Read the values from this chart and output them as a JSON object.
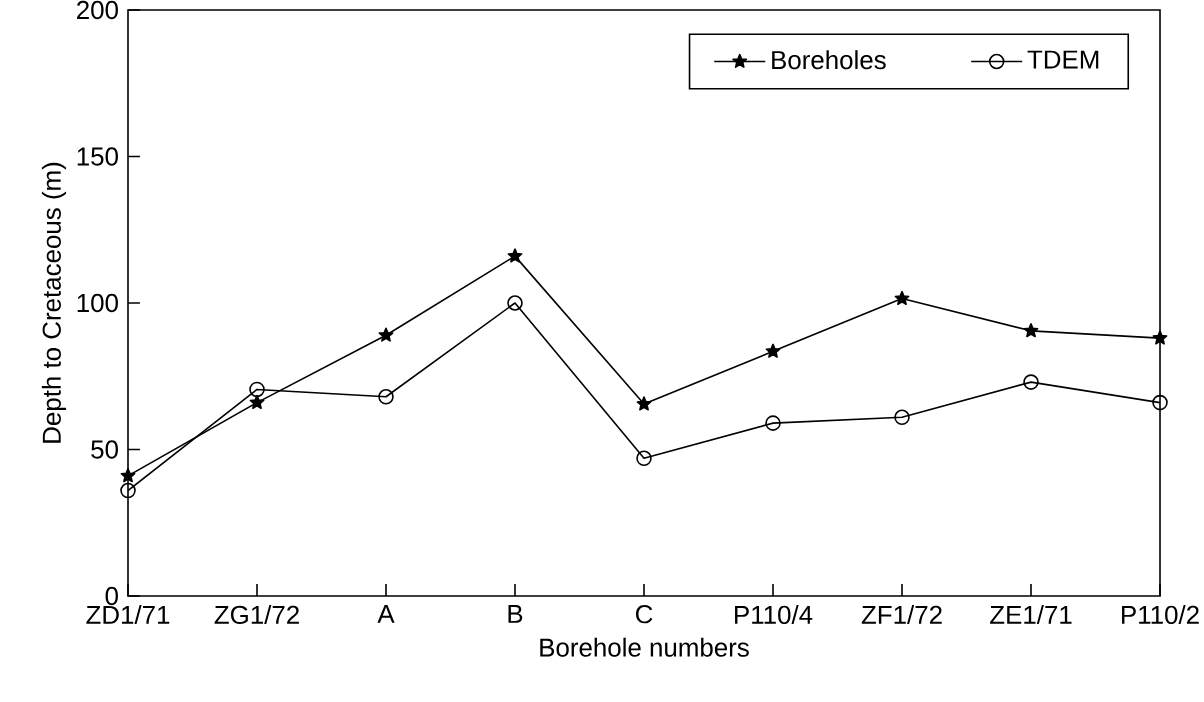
{
  "chart_data": {
    "type": "line",
    "xlabel": "Borehole numbers",
    "ylabel": "Depth to Cretaceous (m)",
    "categories": [
      "ZD1/71",
      "ZG1/72",
      "A",
      "B",
      "C",
      "P110/4",
      "ZF1/72",
      "ZE1/71",
      "P110/2"
    ],
    "series": [
      {
        "name": "Boreholes",
        "color": "#000000",
        "marker": "star",
        "values": [
          41,
          66,
          89,
          116,
          65.5,
          83.5,
          101.5,
          90.5,
          88
        ]
      },
      {
        "name": "TDEM",
        "color": "#000000",
        "marker": "circle",
        "values": [
          36,
          70.5,
          68,
          100,
          47,
          59,
          61,
          73,
          66
        ]
      }
    ],
    "ylim": [
      0,
      200
    ],
    "yticks": [
      0,
      50,
      100,
      150,
      200
    ],
    "grid": false,
    "legend": "top right",
    "line_style": "solid"
  }
}
